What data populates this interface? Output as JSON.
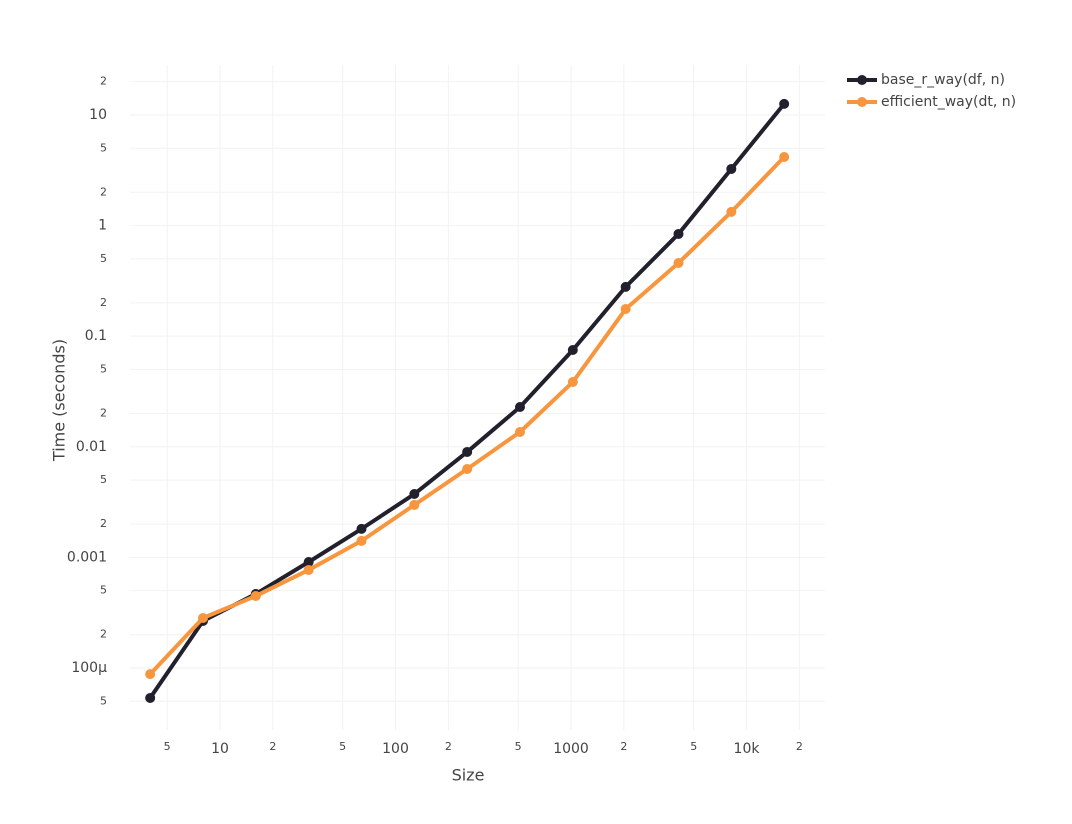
{
  "chart_data": {
    "type": "line",
    "x_label": "Size",
    "y_label": "Time (seconds)",
    "x": [
      4,
      8,
      16,
      32,
      64,
      128,
      256,
      512,
      1024,
      2048,
      4096,
      8192,
      16384
    ],
    "series": [
      {
        "name": "base_r_way(df, n)",
        "color": "#21212e",
        "values": [
          5.36e-05,
          0.000266,
          0.000467,
          0.000908,
          0.00181,
          0.00374,
          0.00898,
          0.0229,
          0.075,
          0.279,
          0.84,
          3.25,
          12.6
        ]
      },
      {
        "name": "efficient_way(dt, n)",
        "color": "#f7963e",
        "values": [
          8.8e-05,
          0.000283,
          0.000448,
          0.00077,
          0.00141,
          0.00298,
          0.0063,
          0.0136,
          0.0385,
          0.176,
          0.459,
          1.33,
          4.17
        ]
      }
    ],
    "xlog": true,
    "ylog": true,
    "xlim": [
      3.07,
      28000
    ],
    "ylim": [
      2.75e-05,
      28.3
    ],
    "xticks": [
      5,
      10,
      {
        "value": 20,
        "label": "2"
      },
      {
        "value": 50,
        "label": "5"
      },
      100,
      {
        "value": 200,
        "label": "2"
      },
      {
        "value": 500,
        "label": "5"
      },
      1000,
      {
        "value": 2000,
        "label": "2"
      },
      {
        "value": 5000,
        "label": "5"
      },
      {
        "value": 10000,
        "label": "10k"
      },
      {
        "value": 20000,
        "label": "2"
      }
    ],
    "yticks": [
      {
        "value": 20,
        "label": "2"
      },
      10,
      5,
      2,
      1,
      {
        "value": 0.5,
        "label": "5"
      },
      {
        "value": 0.2,
        "label": "2"
      },
      0.1,
      {
        "value": 0.05,
        "label": "5"
      },
      {
        "value": 0.02,
        "label": "2"
      },
      0.01,
      {
        "value": 0.005,
        "label": "5"
      },
      {
        "value": 0.002,
        "label": "2"
      },
      0.001,
      {
        "value": 0.0005,
        "label": "5"
      },
      {
        "value": 0.0002,
        "label": "2"
      },
      {
        "value": 0.0001,
        "label": "100μ"
      },
      {
        "value": 5e-05,
        "label": "5"
      }
    ],
    "grid": true,
    "legend": "top-right"
  }
}
